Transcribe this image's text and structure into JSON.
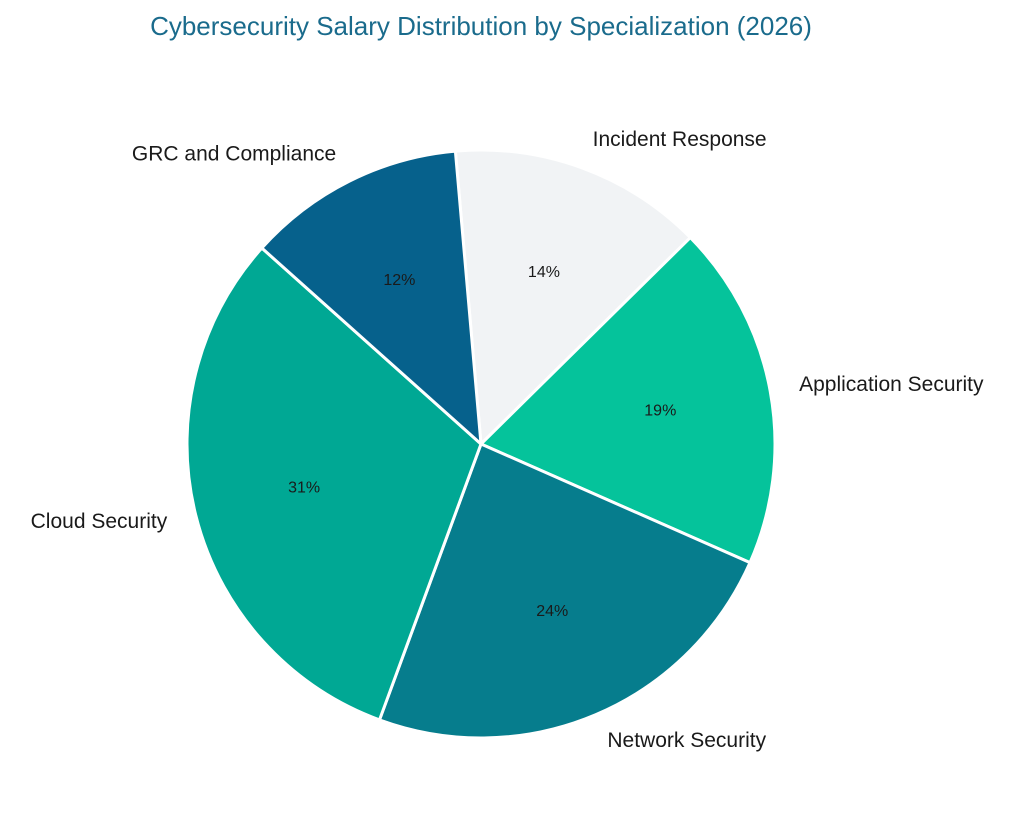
{
  "chart_data": {
    "type": "pie",
    "title": "Cybersecurity Salary Distribution by Specialization (2026)",
    "title_color": "#1a6b8c",
    "start_angle_deg": -5,
    "direction": "clockwise",
    "slices": [
      {
        "label": "Incident Response",
        "value": 14,
        "pct_label": "14%",
        "color": "#f1f3f5"
      },
      {
        "label": "Application Security",
        "value": 19,
        "pct_label": "19%",
        "color": "#05c39b"
      },
      {
        "label": "Network Security",
        "value": 24,
        "pct_label": "24%",
        "color": "#067d8d"
      },
      {
        "label": "Cloud Security",
        "value": 31,
        "pct_label": "31%",
        "color": "#00a894"
      },
      {
        "label": "GRC and Compliance",
        "value": 12,
        "pct_label": "12%",
        "color": "#06618c"
      }
    ]
  }
}
